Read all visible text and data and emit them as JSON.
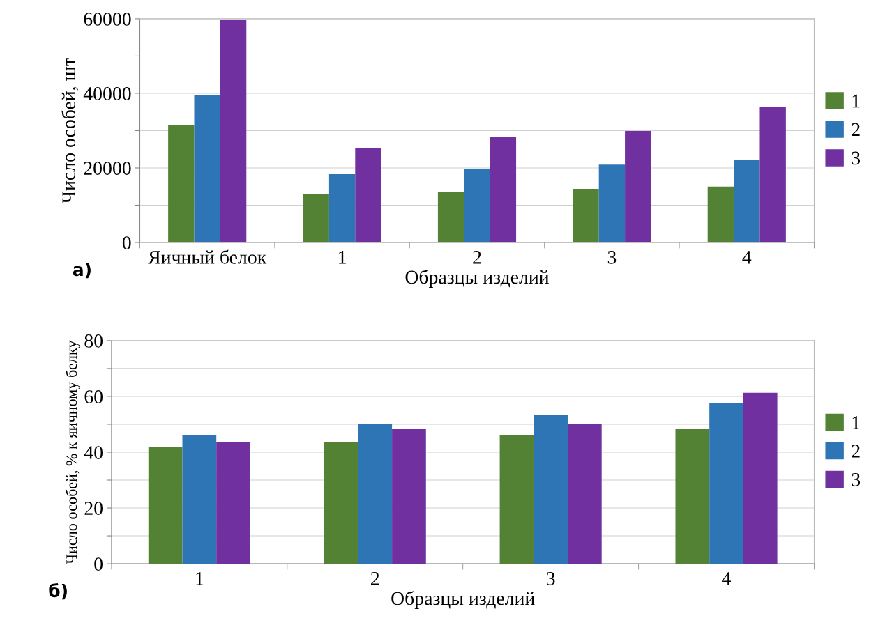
{
  "chart_data": [
    {
      "type": "bar",
      "ylabel": "Число особей, шт",
      "xlabel": "Образцы изделий",
      "categories": [
        "Яичный белок",
        "1",
        "2",
        "3",
        "4"
      ],
      "series": [
        {
          "name": "1",
          "color": "#548235",
          "values": [
            31500,
            13100,
            13600,
            14400,
            15000
          ]
        },
        {
          "name": "2",
          "color": "#2e75b6",
          "values": [
            39600,
            18300,
            19800,
            20900,
            22200
          ]
        },
        {
          "name": "3",
          "color": "#7030a0",
          "values": [
            59600,
            25400,
            28400,
            29900,
            36300
          ]
        }
      ],
      "ylim": [
        0,
        60000
      ],
      "yticks": [
        0,
        {
          "value": 10000,
          "label": null
        },
        20000,
        {
          "value": 30000,
          "label": null
        },
        40000,
        {
          "value": 50000,
          "label": null
        },
        60000
      ],
      "grid": "y",
      "legend": "right",
      "annotations": [
        "а)"
      ]
    },
    {
      "type": "bar",
      "ylabel": "Число особей, % к яичному белку",
      "xlabel": "Образцы изделий",
      "categories": [
        "1",
        "2",
        "3",
        "4"
      ],
      "series": [
        {
          "name": "1",
          "color": "#548235",
          "values": [
            42,
            43.5,
            46,
            48.3
          ]
        },
        {
          "name": "2",
          "color": "#2e75b6",
          "values": [
            46,
            50,
            53.3,
            57.5
          ]
        },
        {
          "name": "3",
          "color": "#7030a0",
          "values": [
            43.5,
            48.3,
            50,
            61.3
          ]
        }
      ],
      "ylim": [
        0,
        80
      ],
      "yticks": [
        0,
        {
          "value": 10,
          "label": null
        },
        20,
        {
          "value": 30,
          "label": null
        },
        40,
        {
          "value": 50,
          "label": null
        },
        60,
        {
          "value": 70,
          "label": null
        },
        80
      ],
      "grid": "y",
      "legend": "right",
      "annotations": [
        "б)"
      ]
    }
  ]
}
